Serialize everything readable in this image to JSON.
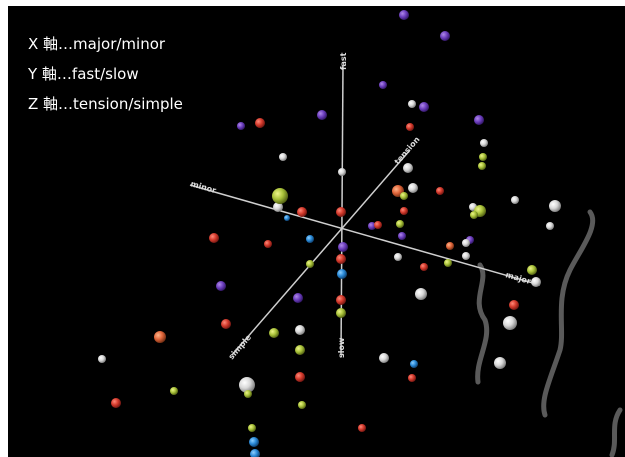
{
  "legend": [
    "X 軸…major/minor",
    "Y 軸…fast/slow",
    "Z 軸…tension/simple"
  ],
  "axis_labels": {
    "y_top": "fast",
    "y_bottom": "slow",
    "x_right": "major",
    "x_left": "minor",
    "z_top": "tension",
    "z_bottom": "simple"
  }
}
